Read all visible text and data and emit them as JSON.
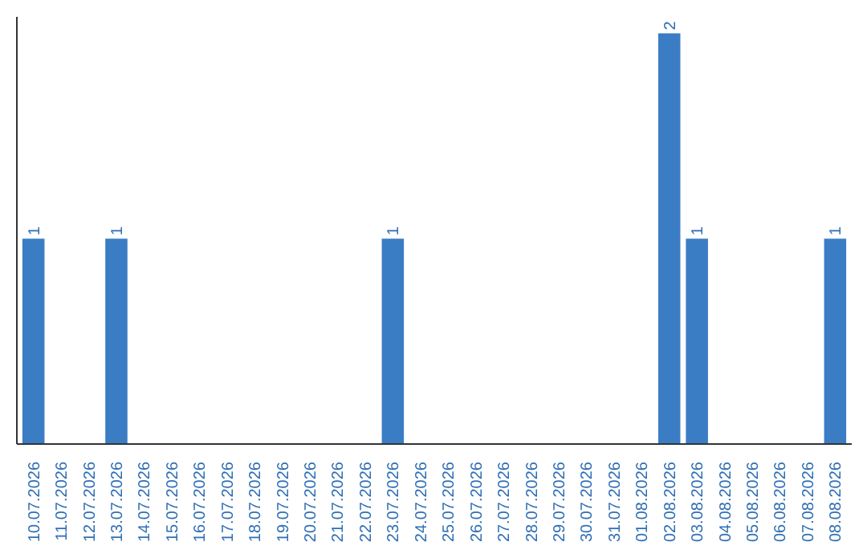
{
  "chart_data": {
    "type": "bar",
    "categories": [
      "10.07.2026",
      "11.07.2026",
      "12.07.2026",
      "13.07.2026",
      "14.07.2026",
      "15.07.2026",
      "16.07.2026",
      "17.07.2026",
      "18.07.2026",
      "19.07.2026",
      "20.07.2026",
      "21.07.2026",
      "22.07.2026",
      "23.07.2026",
      "24.07.2026",
      "25.07.2026",
      "26.07.2026",
      "27.07.2026",
      "28.07.2026",
      "29.07.2026",
      "30.07.2026",
      "31.07.2026",
      "01.08.2026",
      "02.08.2026",
      "03.08.2026",
      "04.08.2026",
      "05.08.2026",
      "06.08.2026",
      "07.08.2026",
      "08.08.2026"
    ],
    "values": [
      1,
      0,
      0,
      1,
      0,
      0,
      0,
      0,
      0,
      0,
      0,
      0,
      0,
      1,
      0,
      0,
      0,
      0,
      0,
      0,
      0,
      0,
      0,
      2,
      1,
      0,
      0,
      0,
      0,
      1
    ],
    "color": "#3b7dc4",
    "value_labels": [
      "1",
      null,
      null,
      "1",
      null,
      null,
      null,
      null,
      null,
      null,
      null,
      null,
      null,
      "1",
      null,
      null,
      null,
      null,
      null,
      null,
      null,
      null,
      null,
      "2",
      "1",
      null,
      null,
      null,
      null,
      "1"
    ],
    "grid": false,
    "tick_labels": "x"
  }
}
